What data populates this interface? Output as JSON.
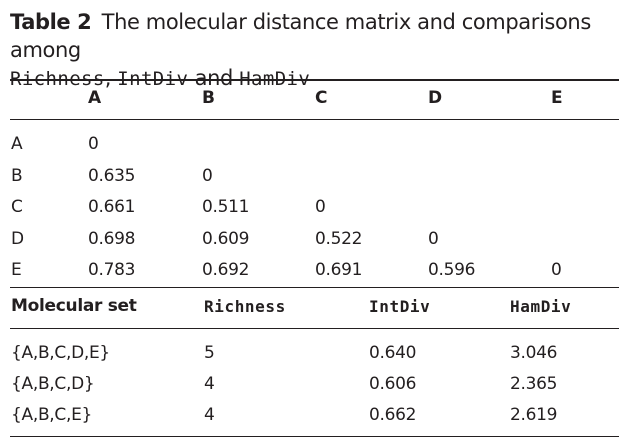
{
  "caption": {
    "label": "Table 2",
    "text_1": "The molecular distance matrix and comparisons among",
    "mono_1": "Richness",
    "comma": ",",
    "mono_2": "IntDiv",
    "and": "and",
    "mono_3": "HamDiv"
  },
  "matrix": {
    "columns": [
      "A",
      "B",
      "C",
      "D",
      "E"
    ],
    "rows": [
      {
        "label": "A",
        "values": [
          "0",
          "",
          "",
          "",
          ""
        ]
      },
      {
        "label": "B",
        "values": [
          "0.635",
          "0",
          "",
          "",
          ""
        ]
      },
      {
        "label": "C",
        "values": [
          "0.661",
          "0.511",
          "0",
          "",
          ""
        ]
      },
      {
        "label": "D",
        "values": [
          "0.698",
          "0.609",
          "0.522",
          "0",
          ""
        ]
      },
      {
        "label": "E",
        "values": [
          "0.783",
          "0.692",
          "0.691",
          "0.596",
          "0"
        ]
      }
    ]
  },
  "comparison": {
    "headers": [
      "Molecular set",
      "Richness",
      "IntDiv",
      "HamDiv"
    ],
    "rows": [
      {
        "set": "{A,B,C,D,E}",
        "richness": "5",
        "intdiv": "0.640",
        "hamdiv": "3.046"
      },
      {
        "set": "{A,B,C,D}",
        "richness": "4",
        "intdiv": "0.606",
        "hamdiv": "2.365"
      },
      {
        "set": "{A,B,C,E}",
        "richness": "4",
        "intdiv": "0.662",
        "hamdiv": "2.619"
      }
    ]
  }
}
